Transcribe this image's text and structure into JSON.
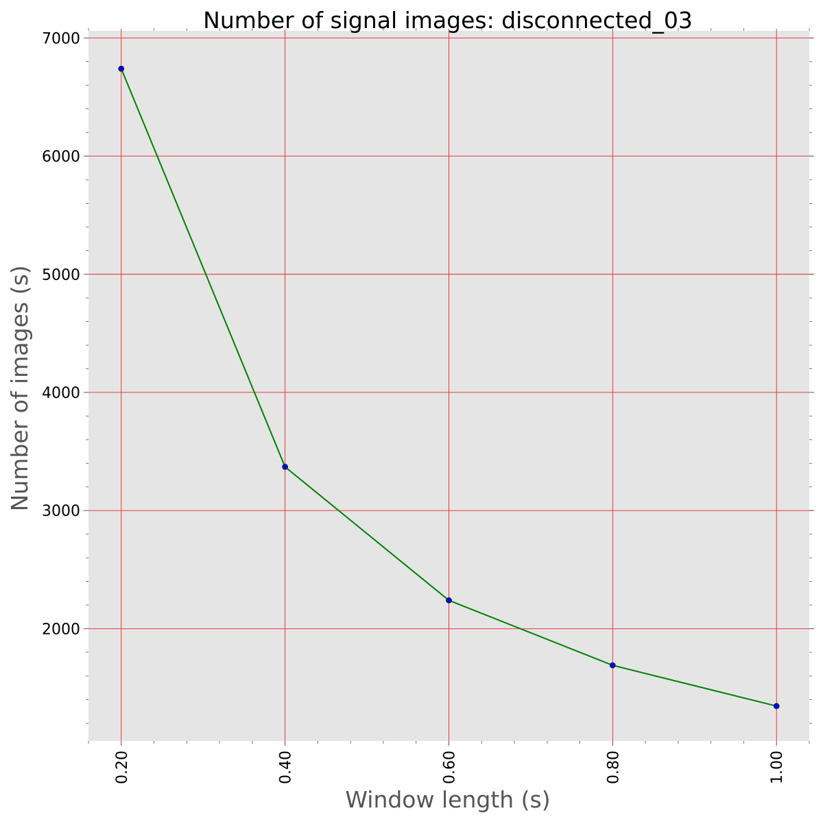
{
  "chart_data": {
    "type": "line",
    "title": "Number of signal images: disconnected_03",
    "xlabel": "Window length (s)",
    "ylabel": "Number of images (s)",
    "x": [
      0.2,
      0.4,
      0.6,
      0.8,
      1.0
    ],
    "x_tick_labels": [
      "0.20",
      "0.40",
      "0.60",
      "0.80",
      "1.00"
    ],
    "y_ticks": [
      2000,
      3000,
      4000,
      5000,
      6000,
      7000
    ],
    "y_tick_labels": [
      "2000",
      "3000",
      "4000",
      "5000",
      "6000",
      "7000"
    ],
    "xlim": [
      0.16,
      1.04
    ],
    "ylim": [
      1050,
      7060
    ],
    "series": [
      {
        "values": [
          6740,
          3370,
          2240,
          1690,
          1345
        ],
        "line_color": "#008000",
        "marker_color": "#0000ff"
      }
    ],
    "grid": true,
    "grid_color": "#e8252a",
    "plot_background": "#e5e5e5",
    "legend": "none"
  }
}
